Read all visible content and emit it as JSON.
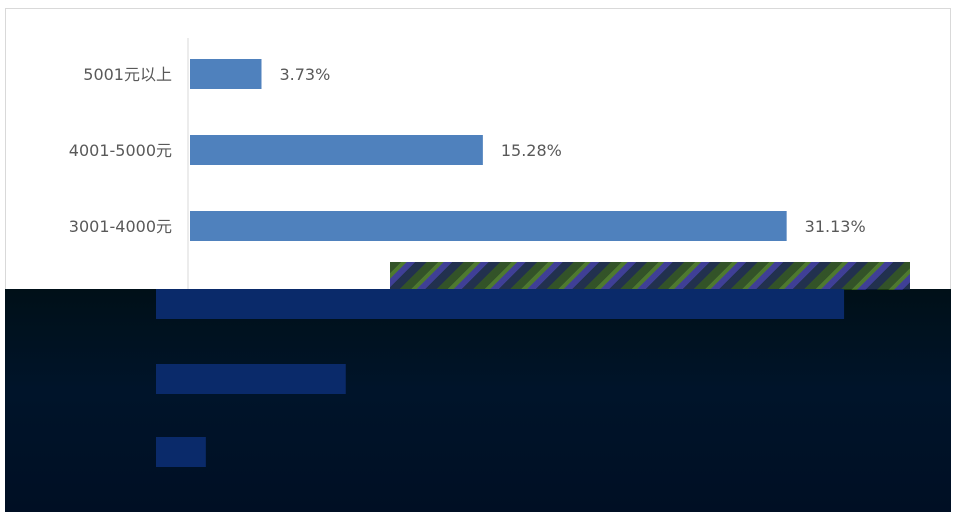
{
  "chart_data": {
    "type": "bar",
    "orientation": "horizontal",
    "categories": [
      "5001元以上",
      "4001-5000元",
      "3001-4000元",
      "",
      "",
      ""
    ],
    "values": [
      3.73,
      15.28,
      31.13,
      35.9,
      9.9,
      2.6
    ],
    "labels": [
      "3.73%",
      "15.28%",
      "31.13%",
      "",
      "",
      ""
    ],
    "value_suffix": "%",
    "xlim": [
      0,
      36
    ],
    "grid": false,
    "legend": "none",
    "colors": {
      "bar": "#4f81bd",
      "bar_obscured": "#0a2a6a",
      "axis": "#d9d9d9",
      "text": "#595959"
    }
  }
}
